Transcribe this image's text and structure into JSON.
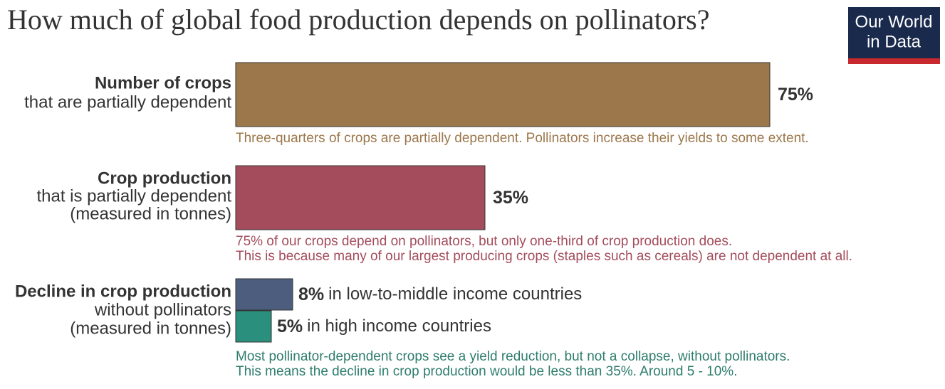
{
  "chart_data": {
    "type": "bar",
    "title": "How much of global food production depends on pollinators?",
    "logo": [
      "Our World",
      "in Data"
    ],
    "groups": [
      {
        "label": "Number of crops",
        "sublabel": [
          "that are partially dependent"
        ],
        "bars": [
          {
            "value": 75,
            "value_label": "75%",
            "color": "#9c774b"
          }
        ],
        "note": [
          "Three-quarters of crops are partially dependent.  Pollinators increase their yields to some extent."
        ],
        "note_color": "#9c774b"
      },
      {
        "label": "Crop production",
        "sublabel": [
          "that is partially dependent",
          "(measured in tonnes)"
        ],
        "bars": [
          {
            "value": 35,
            "value_label": "35%",
            "color": "#a44c5b"
          }
        ],
        "note": [
          "75% of our crops depend on pollinators, but only one-third of crop production does.",
          "This is because many of our largest producing crops (staples such as cereals) are not dependent at all."
        ],
        "note_color": "#a44c5b"
      },
      {
        "label": "Decline in crop production",
        "sublabel": [
          "without pollinators",
          "(measured in tonnes)"
        ],
        "bars": [
          {
            "value": 8,
            "value_label": "8%",
            "text": "in low-to-middle income countries",
            "color": "#4c5d7e"
          },
          {
            "value": 5,
            "value_label": "5%",
            "text": "in high income countries",
            "color": "#2a8f7c"
          }
        ],
        "note": [
          "Most pollinator-dependent crops see a yield reduction, but not a collapse, without pollinators.",
          "This means the decline in crop production would be less than 35%. Around 5 - 10%."
        ],
        "note_color": "#2e7d6b"
      }
    ]
  }
}
